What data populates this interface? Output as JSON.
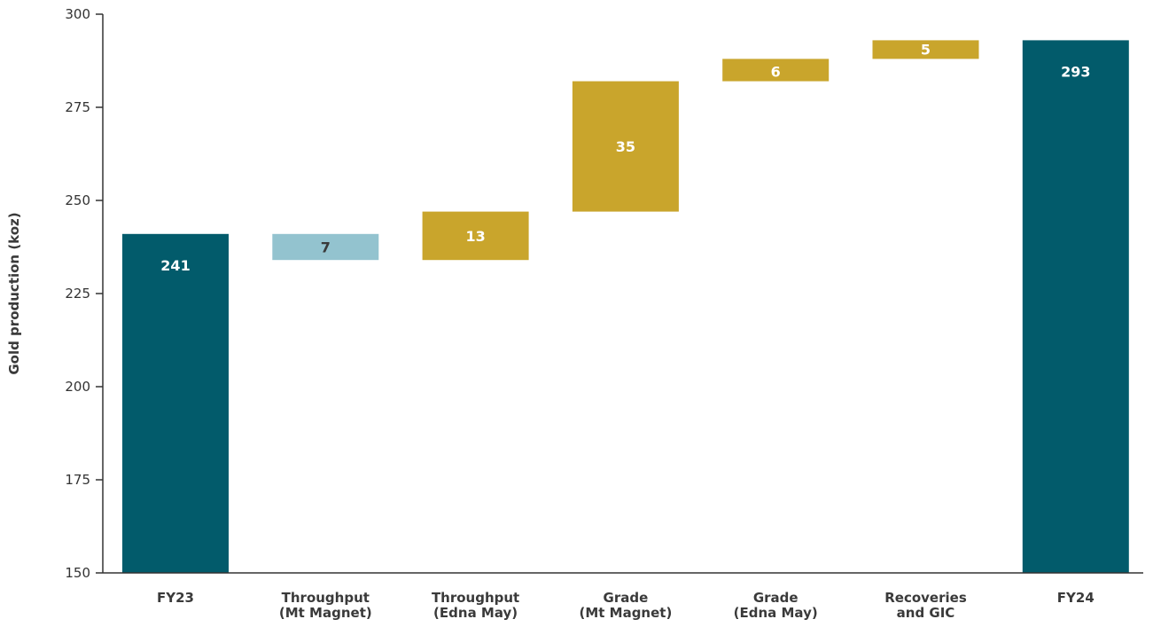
{
  "chart_data": {
    "type": "bar",
    "subtype": "waterfall",
    "categories": [
      "FY23",
      "Throughput\n(Mt Magnet)",
      "Throughput\n(Edna May)",
      "Grade\n(Mt Magnet)",
      "Grade\n(Edna May)",
      "Recoveries\nand GIC",
      "FY24"
    ],
    "bars": [
      {
        "category": "FY23",
        "kind": "total",
        "start": 0,
        "end": 241,
        "label": "241",
        "color": "#025b6b",
        "label_color": "#ffffff"
      },
      {
        "category": "Throughput (Mt Magnet)",
        "kind": "decrease",
        "start": 241,
        "end": 234,
        "label": "7",
        "color": "#93c3cf",
        "label_color": "#3a3a3a"
      },
      {
        "category": "Throughput (Edna May)",
        "kind": "increase",
        "start": 234,
        "end": 247,
        "label": "13",
        "color": "#c9a52c",
        "label_color": "#ffffff"
      },
      {
        "category": "Grade (Mt Magnet)",
        "kind": "increase",
        "start": 247,
        "end": 282,
        "label": "35",
        "color": "#c9a52c",
        "label_color": "#ffffff"
      },
      {
        "category": "Grade (Edna May)",
        "kind": "increase",
        "start": 282,
        "end": 288,
        "label": "6",
        "color": "#c9a52c",
        "label_color": "#ffffff"
      },
      {
        "category": "Recoveries and GIC",
        "kind": "increase",
        "start": 288,
        "end": 293,
        "label": "5",
        "color": "#c9a52c",
        "label_color": "#ffffff"
      },
      {
        "category": "FY24",
        "kind": "total",
        "start": 0,
        "end": 293,
        "label": "293",
        "color": "#025b6b",
        "label_color": "#ffffff"
      }
    ],
    "title": "",
    "xlabel": "",
    "ylabel": "Gold production (koz)",
    "ylim": [
      150,
      300
    ],
    "yticks": [
      150,
      175,
      200,
      225,
      250,
      275,
      300
    ],
    "grid": false,
    "legend": "none"
  }
}
